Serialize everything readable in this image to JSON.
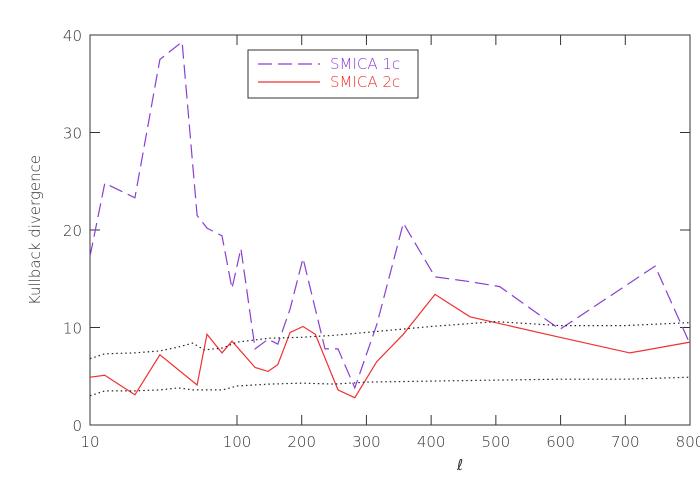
{
  "chart_data": {
    "type": "line",
    "xlabel": "ℓ",
    "ylabel": "Kullback divergence",
    "xscale": "log-linear",
    "xlim": [
      10,
      800
    ],
    "xticks": [
      10,
      100,
      200,
      300,
      400,
      500,
      600,
      700,
      800
    ],
    "ylim": [
      0,
      40
    ],
    "yticks": [
      0,
      10,
      20,
      30,
      40
    ],
    "series": [
      {
        "name": "SMICA 1c",
        "color": "#8a3fd0",
        "dash": "dashed",
        "x": [
          10,
          12.6,
          20.2,
          29.9,
          42.3,
          53.5,
          62.5,
          79,
          92.5,
          106,
          128,
          148,
          163,
          182,
          202,
          236,
          256,
          282,
          316,
          357,
          406,
          460,
          506,
          599,
          746,
          800
        ],
        "values": [
          17.3,
          24.8,
          23.3,
          37.5,
          39.3,
          21.5,
          20.2,
          19.4,
          14.0,
          18.1,
          7.8,
          8.8,
          8.3,
          11.9,
          17.1,
          7.8,
          7.8,
          3.8,
          10.3,
          20.7,
          15.2,
          14.7,
          14.2,
          9.8,
          16.3,
          8.3
        ]
      },
      {
        "name": "SMICA 2c",
        "color": "#f03030",
        "dash": "solid",
        "x": [
          10,
          12.6,
          20.2,
          29.9,
          53.5,
          62.5,
          79,
          92.5,
          128,
          148,
          163,
          182,
          202,
          221,
          256,
          282,
          316,
          357,
          406,
          460,
          599,
          707,
          800
        ],
        "values": [
          4.9,
          5.1,
          3.1,
          7.2,
          4.1,
          9.3,
          7.4,
          8.6,
          5.9,
          5.5,
          6.2,
          9.5,
          10.1,
          9.3,
          3.6,
          2.8,
          6.5,
          9.3,
          13.4,
          11.1,
          9.0,
          7.4,
          8.5
        ]
      },
      {
        "color": "#222222",
        "dash": "dotted",
        "x": [
          10,
          12.6,
          20,
          30,
          40,
          50,
          60,
          80,
          100,
          150,
          200,
          250,
          300,
          400,
          500,
          600,
          700,
          800
        ],
        "values": [
          6.8,
          7.3,
          7.4,
          7.6,
          8.0,
          8.4,
          7.7,
          7.9,
          8.5,
          8.9,
          9.0,
          9.2,
          9.5,
          10.1,
          10.6,
          10.2,
          10.2,
          10.5
        ]
      },
      {
        "color": "#222222",
        "dash": "dotted",
        "x": [
          10,
          12.6,
          20,
          30,
          40,
          50,
          80,
          100,
          150,
          200,
          250,
          300,
          400,
          500,
          600,
          700,
          800
        ],
        "values": [
          3.0,
          3.5,
          3.5,
          3.6,
          3.8,
          3.6,
          3.6,
          4.0,
          4.2,
          4.3,
          4.2,
          4.4,
          4.5,
          4.6,
          4.7,
          4.7,
          4.9
        ]
      }
    ]
  }
}
